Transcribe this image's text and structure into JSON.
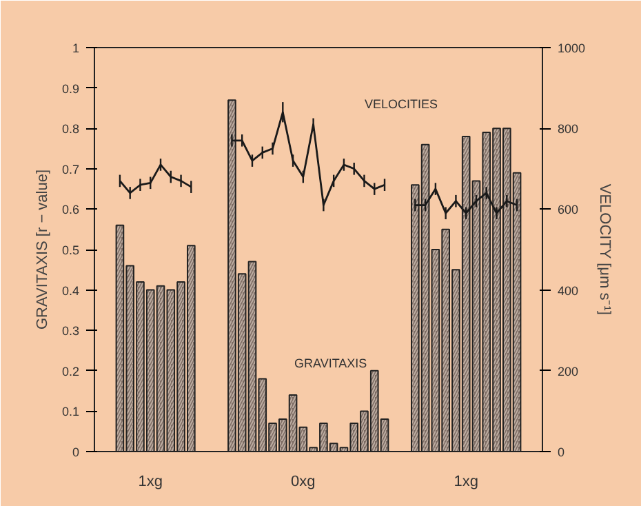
{
  "chart_data": {
    "type": "bar",
    "ylabel": "GRAVITAXIS [r − value]",
    "y2label": "VELOCITY [μm s⁻¹]",
    "categories": [
      null,
      null,
      null,
      "1xg",
      null,
      null,
      null,
      null,
      null,
      null,
      null,
      null,
      null,
      null,
      null,
      null,
      null,
      null,
      "0xg",
      null,
      null,
      null,
      null,
      null,
      null,
      null,
      null,
      null,
      null,
      null,
      null,
      null,
      null,
      null,
      "1xg",
      null,
      null,
      null,
      null,
      null
    ],
    "ylim": [
      0,
      1
    ],
    "yticks": [
      0,
      0.1,
      0.2,
      0.3,
      0.4,
      0.5,
      0.6,
      0.7,
      0.8,
      0.9,
      1
    ],
    "y2lim": [
      0,
      1000
    ],
    "y2ticks": [
      0,
      200,
      400,
      600,
      800,
      1000
    ],
    "series": [
      {
        "color": "#7d6c64",
        "values": [
          0.56,
          0.46,
          0.42,
          0.4,
          0.41,
          0.4,
          0.42,
          0.51,
          null,
          null,
          null,
          0.87,
          0.44,
          0.47,
          0.18,
          0.07,
          0.08,
          0.14,
          0.06,
          0.01,
          0.07,
          0.02,
          0.01,
          0.07,
          0.1,
          0.2,
          0.08,
          null,
          null,
          0.66,
          0.76,
          0.5,
          0.55,
          0.45,
          0.78,
          0.67,
          0.79,
          0.8,
          0.8,
          0.69
        ]
      },
      {
        "type": "line",
        "axis": "y2",
        "color": "#1a1a1a",
        "values": [
          670,
          640,
          660,
          665,
          710,
          680,
          670,
          655,
          null,
          null,
          null,
          770,
          770,
          720,
          740,
          750,
          840,
          720,
          680,
          810,
          610,
          670,
          710,
          700,
          670,
          650,
          660,
          null,
          null,
          610,
          610,
          650,
          590,
          620,
          590,
          620,
          640,
          590,
          620,
          610
        ],
        "errors": [
          15,
          15,
          15,
          15,
          15,
          15,
          15,
          15,
          null,
          null,
          null,
          15,
          15,
          15,
          15,
          15,
          25,
          15,
          15,
          15,
          15,
          15,
          15,
          15,
          15,
          15,
          15,
          null,
          null,
          15,
          15,
          15,
          15,
          15,
          15,
          15,
          15,
          15,
          15,
          15
        ]
      }
    ],
    "annotations": [
      "VELOCITIES",
      "GRAVITAXIS"
    ],
    "grid": false
  }
}
